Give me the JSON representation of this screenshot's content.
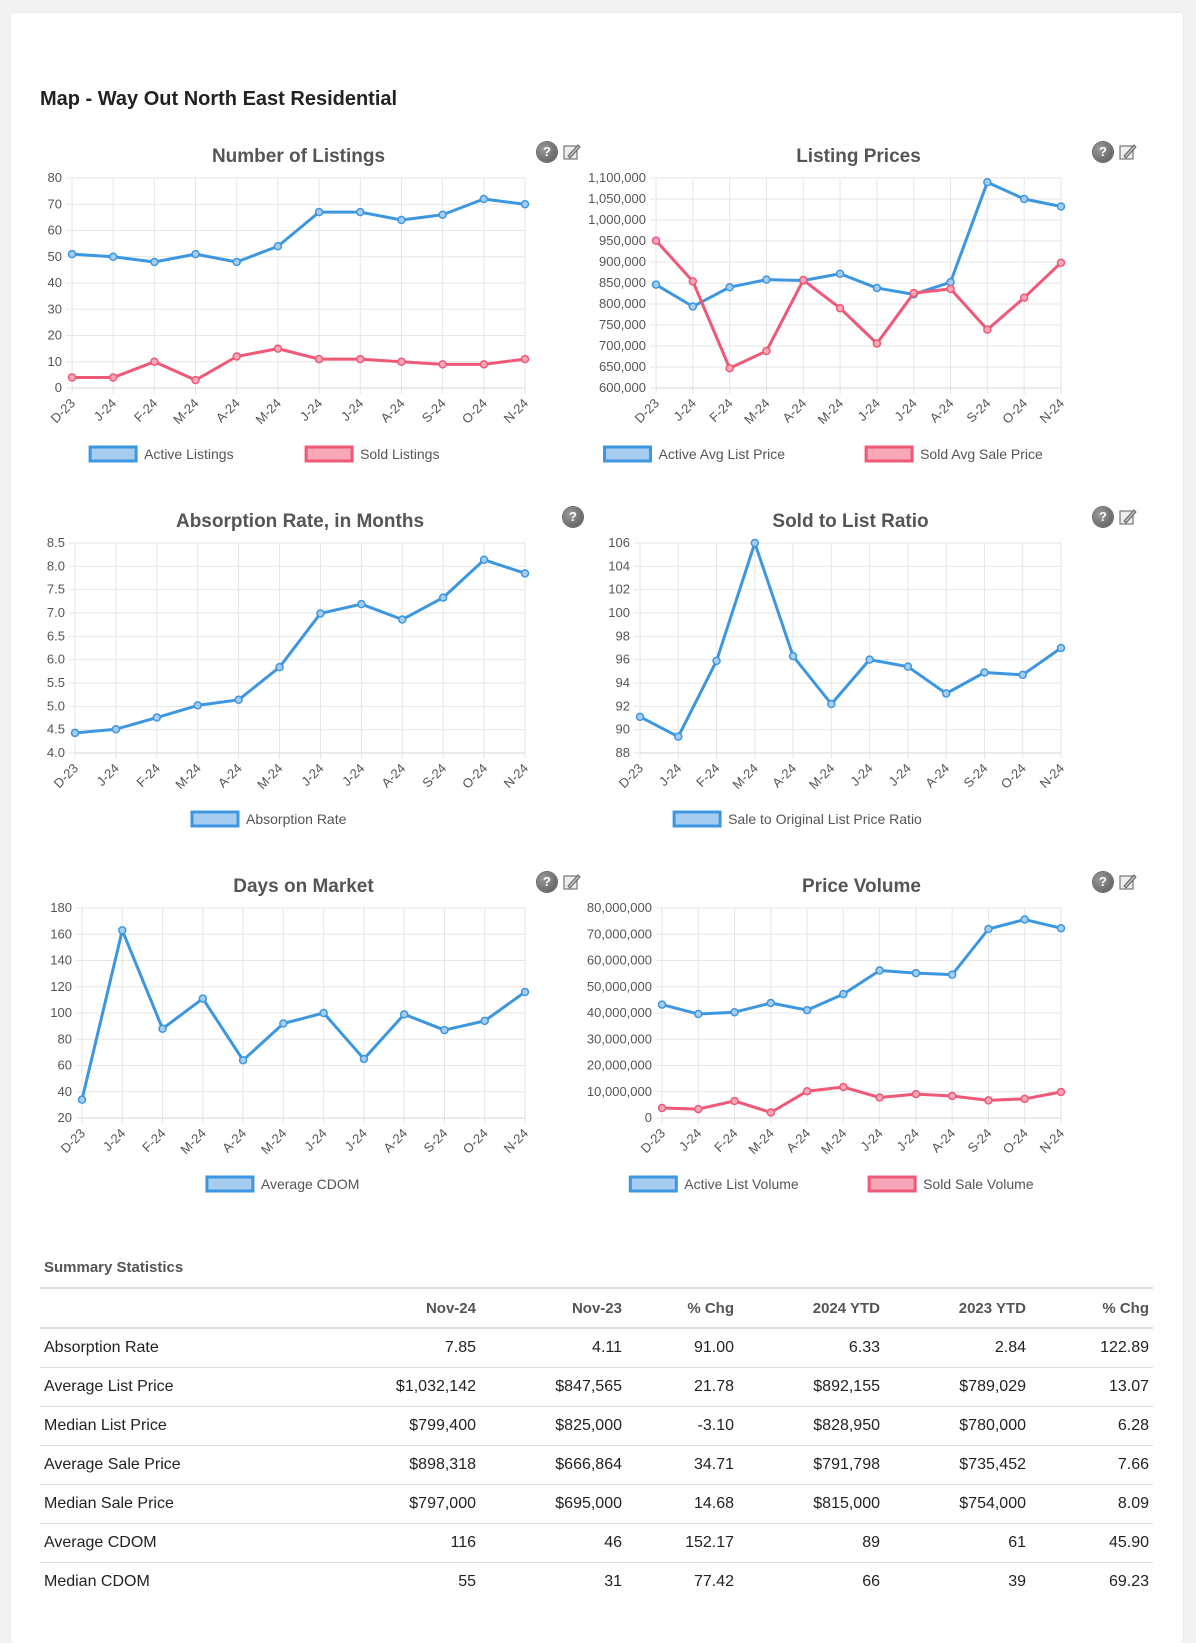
{
  "page": {
    "title": "Map - Way Out North East Residential"
  },
  "colors": {
    "blue": "#3d97e0",
    "red": "#f05878",
    "blue_fill": "#a6cdf0",
    "red_fill": "#f7a8b8"
  },
  "months": [
    "D-23",
    "J-24",
    "F-24",
    "M-24",
    "A-24",
    "M-24",
    "J-24",
    "J-24",
    "A-24",
    "S-24",
    "O-24",
    "N-24"
  ],
  "chart_data": [
    {
      "id": "listings",
      "type": "line",
      "title": "Number of Listings",
      "categories": [
        "D-23",
        "J-24",
        "F-24",
        "M-24",
        "A-24",
        "M-24",
        "J-24",
        "J-24",
        "A-24",
        "S-24",
        "O-24",
        "N-24"
      ],
      "ylim": [
        0,
        80
      ],
      "yticks": [
        0,
        10,
        20,
        30,
        40,
        50,
        60,
        70,
        80
      ],
      "ytick_labels": [
        "0",
        "10",
        "20",
        "30",
        "40",
        "50",
        "60",
        "70",
        "80"
      ],
      "series": [
        {
          "name": "Active Listings",
          "color": "#3d97e0",
          "values": [
            51,
            50,
            48,
            51,
            48,
            54,
            67,
            67,
            64,
            66,
            72,
            70
          ]
        },
        {
          "name": "Sold Listings",
          "color": "#f05878",
          "values": [
            4,
            4,
            10,
            3,
            12,
            15,
            11,
            11,
            10,
            9,
            9,
            11
          ]
        }
      ]
    },
    {
      "id": "prices",
      "type": "line",
      "title": "Listing Prices",
      "categories": [
        "D-23",
        "J-24",
        "F-24",
        "M-24",
        "A-24",
        "M-24",
        "J-24",
        "J-24",
        "A-24",
        "S-24",
        "O-24",
        "N-24"
      ],
      "ylim": [
        600000,
        1100000
      ],
      "yticks": [
        600000,
        650000,
        700000,
        750000,
        800000,
        850000,
        900000,
        950000,
        1000000,
        1050000,
        1100000
      ],
      "ytick_labels": [
        "600,000",
        "650,000",
        "700,000",
        "750,000",
        "800,000",
        "850,000",
        "900,000",
        "950,000",
        "1,000,000",
        "1,050,000",
        "1,100,000"
      ],
      "series": [
        {
          "name": "Active Avg List Price",
          "color": "#3d97e0",
          "values": [
            846000,
            794000,
            840000,
            858000,
            856000,
            872000,
            838000,
            823000,
            852000,
            1090000,
            1050000,
            1032142
          ]
        },
        {
          "name": "Sold Avg Sale Price",
          "color": "#f05878",
          "values": [
            951000,
            854000,
            647000,
            688000,
            857000,
            790000,
            706000,
            826000,
            836000,
            739000,
            815000,
            898318
          ]
        }
      ]
    },
    {
      "id": "absorption",
      "type": "line",
      "title": "Absorption Rate, in Months",
      "categories": [
        "D-23",
        "J-24",
        "F-24",
        "M-24",
        "A-24",
        "M-24",
        "J-24",
        "J-24",
        "A-24",
        "S-24",
        "O-24",
        "N-24"
      ],
      "ylim": [
        4.0,
        8.5
      ],
      "yticks": [
        4.0,
        4.5,
        5.0,
        5.5,
        6.0,
        6.5,
        7.0,
        7.5,
        8.0,
        8.5
      ],
      "ytick_labels": [
        "4.0",
        "4.5",
        "5.0",
        "5.5",
        "6.0",
        "6.5",
        "7.0",
        "7.5",
        "8.0",
        "8.5"
      ],
      "series": [
        {
          "name": "Absorption Rate",
          "color": "#3d97e0",
          "values": [
            4.43,
            4.51,
            4.76,
            5.02,
            5.14,
            5.84,
            6.99,
            7.19,
            6.86,
            7.33,
            8.14,
            7.85
          ]
        }
      ]
    },
    {
      "id": "ratio",
      "type": "line",
      "title": "Sold to List Ratio",
      "categories": [
        "D-23",
        "J-24",
        "F-24",
        "M-24",
        "A-24",
        "M-24",
        "J-24",
        "J-24",
        "A-24",
        "S-24",
        "O-24",
        "N-24"
      ],
      "ylim": [
        88,
        106
      ],
      "yticks": [
        88,
        90,
        92,
        94,
        96,
        98,
        100,
        102,
        104,
        106
      ],
      "ytick_labels": [
        "88",
        "90",
        "92",
        "94",
        "96",
        "98",
        "100",
        "102",
        "104",
        "106"
      ],
      "series": [
        {
          "name": "Sale to Original List Price Ratio",
          "color": "#3d97e0",
          "values": [
            91.1,
            89.4,
            95.9,
            106.0,
            96.3,
            92.2,
            96.0,
            95.4,
            93.1,
            94.9,
            94.7,
            97.0
          ]
        }
      ]
    },
    {
      "id": "dom",
      "type": "line",
      "title": "Days on Market",
      "categories": [
        "D-23",
        "J-24",
        "F-24",
        "M-24",
        "A-24",
        "M-24",
        "J-24",
        "J-24",
        "A-24",
        "S-24",
        "O-24",
        "N-24"
      ],
      "ylim": [
        20,
        180
      ],
      "yticks": [
        20,
        40,
        60,
        80,
        100,
        120,
        140,
        160,
        180
      ],
      "ytick_labels": [
        "20",
        "40",
        "60",
        "80",
        "100",
        "120",
        "140",
        "160",
        "180"
      ],
      "series": [
        {
          "name": "Average CDOM",
          "color": "#3d97e0",
          "values": [
            34,
            163,
            88,
            111,
            64,
            92,
            100,
            65,
            99,
            87,
            94,
            116
          ]
        }
      ]
    },
    {
      "id": "volume",
      "type": "line",
      "title": "Price Volume",
      "categories": [
        "D-23",
        "J-24",
        "F-24",
        "M-24",
        "A-24",
        "M-24",
        "J-24",
        "J-24",
        "A-24",
        "S-24",
        "O-24",
        "N-24"
      ],
      "ylim": [
        0,
        80000000
      ],
      "yticks": [
        0,
        10000000,
        20000000,
        30000000,
        40000000,
        50000000,
        60000000,
        70000000,
        80000000
      ],
      "ytick_labels": [
        "0",
        "10,000,000",
        "20,000,000",
        "30,000,000",
        "40,000,000",
        "50,000,000",
        "60,000,000",
        "70,000,000",
        "80,000,000"
      ],
      "series": [
        {
          "name": "Active List Volume",
          "color": "#3d97e0",
          "values": [
            43200000,
            39600000,
            40300000,
            43800000,
            41100000,
            47200000,
            56200000,
            55200000,
            54600000,
            72000000,
            75600000,
            72300000
          ]
        },
        {
          "name": "Sold Sale Volume",
          "color": "#f05878",
          "values": [
            3800000,
            3400000,
            6500000,
            2100000,
            10200000,
            11800000,
            7800000,
            9100000,
            8400000,
            6700000,
            7300000,
            9900000
          ]
        }
      ]
    }
  ],
  "summary": {
    "title": "Summary Statistics",
    "headers": [
      "",
      "Nov-24",
      "Nov-23",
      "% Chg",
      "2024 YTD",
      "2023 YTD",
      "% Chg"
    ],
    "rows": [
      [
        "Absorption Rate",
        "7.85",
        "4.11",
        "91.00",
        "6.33",
        "2.84",
        "122.89"
      ],
      [
        "Average List Price",
        "$1,032,142",
        "$847,565",
        "21.78",
        "$892,155",
        "$789,029",
        "13.07"
      ],
      [
        "Median List Price",
        "$799,400",
        "$825,000",
        "-3.10",
        "$828,950",
        "$780,000",
        "6.28"
      ],
      [
        "Average Sale Price",
        "$898,318",
        "$666,864",
        "34.71",
        "$791,798",
        "$735,452",
        "7.66"
      ],
      [
        "Median Sale Price",
        "$797,000",
        "$695,000",
        "14.68",
        "$815,000",
        "$754,000",
        "8.09"
      ],
      [
        "Average CDOM",
        "116",
        "46",
        "152.17",
        "89",
        "61",
        "45.90"
      ],
      [
        "Median CDOM",
        "55",
        "31",
        "77.42",
        "66",
        "39",
        "69.23"
      ]
    ]
  }
}
